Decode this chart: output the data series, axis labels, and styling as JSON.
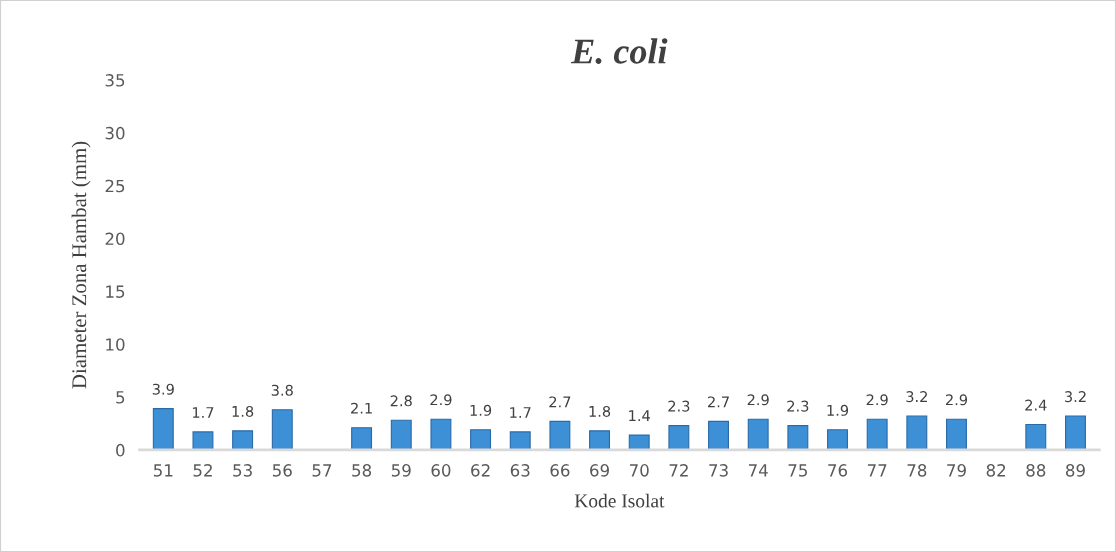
{
  "chart_data": {
    "type": "bar",
    "title": "E. coli",
    "xlabel": "Kode Isolat",
    "ylabel": "Diameter Zona Hambat (mm)",
    "categories": [
      "51",
      "52",
      "53",
      "56",
      "57",
      "58",
      "59",
      "60",
      "62",
      "63",
      "66",
      "69",
      "70",
      "72",
      "73",
      "74",
      "75",
      "76",
      "77",
      "78",
      "79",
      "82",
      "88",
      "89"
    ],
    "values": [
      3.9,
      1.7,
      1.8,
      3.8,
      null,
      2.1,
      2.8,
      2.9,
      1.9,
      1.7,
      2.7,
      1.8,
      1.4,
      2.3,
      2.7,
      2.9,
      2.3,
      1.9,
      2.9,
      3.2,
      2.9,
      null,
      2.4,
      3.2
    ],
    "color": "#3d8fd6",
    "ylim": [
      0,
      35
    ],
    "yticks": [
      0,
      5,
      10,
      15,
      20,
      25,
      30,
      35
    ],
    "grid": false,
    "data_labels": true
  }
}
